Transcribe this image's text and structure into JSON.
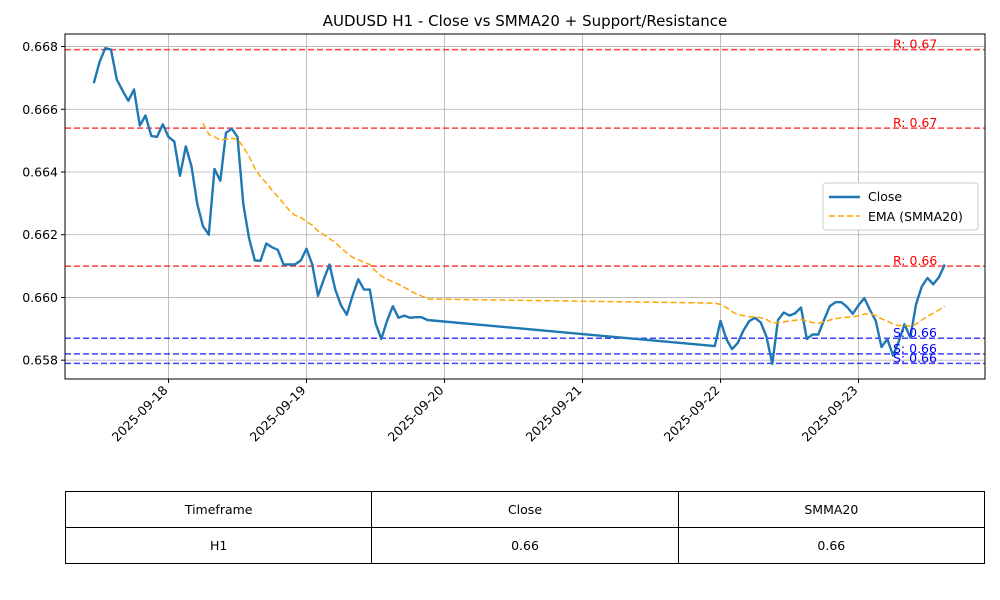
{
  "chart_data": {
    "type": "line",
    "title": "AUDUSD H1 - Close vs SMMA20 + Support/Resistance",
    "xlabel": "",
    "ylabel": "",
    "x_ticks": [
      "2025-09-18",
      "2025-09-19",
      "2025-09-20",
      "2025-09-21",
      "2025-09-22",
      "2025-09-23"
    ],
    "y_ticks": [
      "0.658",
      "0.660",
      "0.662",
      "0.664",
      "0.666",
      "0.668"
    ],
    "xlim": [
      "2025-09-17 06:00",
      "2025-09-23 22:00"
    ],
    "ylim": [
      0.6574,
      0.6684
    ],
    "grid": true,
    "legend_position": "center-right",
    "series": [
      {
        "name": "Close",
        "color": "#1f77b4",
        "style": "solid",
        "points": [
          [
            "2025-09-17 11:00",
            0.66683
          ],
          [
            "2025-09-17 12:00",
            0.6675
          ],
          [
            "2025-09-17 13:00",
            0.66795
          ],
          [
            "2025-09-17 14:00",
            0.6679
          ],
          [
            "2025-09-17 15:00",
            0.66695
          ],
          [
            "2025-09-17 16:00",
            0.6666
          ],
          [
            "2025-09-17 17:00",
            0.66627
          ],
          [
            "2025-09-17 18:00",
            0.66663
          ],
          [
            "2025-09-17 19:00",
            0.66548
          ],
          [
            "2025-09-17 20:00",
            0.6658
          ],
          [
            "2025-09-17 21:00",
            0.66515
          ],
          [
            "2025-09-17 22:00",
            0.66512
          ],
          [
            "2025-09-17 23:00",
            0.66552
          ],
          [
            "2025-09-18 00:00",
            0.66512
          ],
          [
            "2025-09-18 01:00",
            0.66497
          ],
          [
            "2025-09-18 02:00",
            0.66388
          ],
          [
            "2025-09-18 03:00",
            0.66482
          ],
          [
            "2025-09-18 04:00",
            0.66418
          ],
          [
            "2025-09-18 05:00",
            0.66298
          ],
          [
            "2025-09-18 06:00",
            0.66227
          ],
          [
            "2025-09-18 07:00",
            0.662
          ],
          [
            "2025-09-18 08:00",
            0.6641
          ],
          [
            "2025-09-18 09:00",
            0.66372
          ],
          [
            "2025-09-18 10:00",
            0.66525
          ],
          [
            "2025-09-18 11:00",
            0.66538
          ],
          [
            "2025-09-18 12:00",
            0.66512
          ],
          [
            "2025-09-18 13:00",
            0.66298
          ],
          [
            "2025-09-18 14:00",
            0.6619
          ],
          [
            "2025-09-18 15:00",
            0.66118
          ],
          [
            "2025-09-18 16:00",
            0.66117
          ],
          [
            "2025-09-18 17:00",
            0.66172
          ],
          [
            "2025-09-18 18:00",
            0.6616
          ],
          [
            "2025-09-18 19:00",
            0.66152
          ],
          [
            "2025-09-18 20:00",
            0.66105
          ],
          [
            "2025-09-18 21:00",
            0.66105
          ],
          [
            "2025-09-18 22:00",
            0.66105
          ],
          [
            "2025-09-18 23:00",
            0.66118
          ],
          [
            "2025-09-19 00:00",
            0.66155
          ],
          [
            "2025-09-19 01:00",
            0.66105
          ],
          [
            "2025-09-19 02:00",
            0.66005
          ],
          [
            "2025-09-19 03:00",
            0.66058
          ],
          [
            "2025-09-19 04:00",
            0.66105
          ],
          [
            "2025-09-19 05:00",
            0.66025
          ],
          [
            "2025-09-19 06:00",
            0.65975
          ],
          [
            "2025-09-19 07:00",
            0.65945
          ],
          [
            "2025-09-19 08:00",
            0.66005
          ],
          [
            "2025-09-19 09:00",
            0.66058
          ],
          [
            "2025-09-19 10:00",
            0.66025
          ],
          [
            "2025-09-19 11:00",
            0.66025
          ],
          [
            "2025-09-19 12:00",
            0.65918
          ],
          [
            "2025-09-19 13:00",
            0.65868
          ],
          [
            "2025-09-19 14:00",
            0.65925
          ],
          [
            "2025-09-19 15:00",
            0.65972
          ],
          [
            "2025-09-19 16:00",
            0.65935
          ],
          [
            "2025-09-19 17:00",
            0.65942
          ],
          [
            "2025-09-19 18:00",
            0.65935
          ],
          [
            "2025-09-19 19:00",
            0.65937
          ],
          [
            "2025-09-19 20:00",
            0.65937
          ],
          [
            "2025-09-19 21:00",
            0.65928
          ],
          [
            "2025-09-21 23:00",
            0.65845
          ],
          [
            "2025-09-22 00:00",
            0.65925
          ],
          [
            "2025-09-22 01:00",
            0.65868
          ],
          [
            "2025-09-22 02:00",
            0.65835
          ],
          [
            "2025-09-22 03:00",
            0.65855
          ],
          [
            "2025-09-22 04:00",
            0.65895
          ],
          [
            "2025-09-22 05:00",
            0.65925
          ],
          [
            "2025-09-22 06:00",
            0.65935
          ],
          [
            "2025-09-22 07:00",
            0.6592
          ],
          [
            "2025-09-22 08:00",
            0.65875
          ],
          [
            "2025-09-22 09:00",
            0.65788
          ],
          [
            "2025-09-22 10:00",
            0.65928
          ],
          [
            "2025-09-22 11:00",
            0.65952
          ],
          [
            "2025-09-22 12:00",
            0.65942
          ],
          [
            "2025-09-22 13:00",
            0.6595
          ],
          [
            "2025-09-22 14:00",
            0.65968
          ],
          [
            "2025-09-22 15:00",
            0.65868
          ],
          [
            "2025-09-22 16:00",
            0.65882
          ],
          [
            "2025-09-22 17:00",
            0.65882
          ],
          [
            "2025-09-22 18:00",
            0.65928
          ],
          [
            "2025-09-22 19:00",
            0.65972
          ],
          [
            "2025-09-22 20:00",
            0.65985
          ],
          [
            "2025-09-22 21:00",
            0.65985
          ],
          [
            "2025-09-22 22:00",
            0.6597
          ],
          [
            "2025-09-22 23:00",
            0.65948
          ],
          [
            "2025-09-23 00:00",
            0.65975
          ],
          [
            "2025-09-23 01:00",
            0.65998
          ],
          [
            "2025-09-23 02:00",
            0.6596
          ],
          [
            "2025-09-23 03:00",
            0.65925
          ],
          [
            "2025-09-23 04:00",
            0.65842
          ],
          [
            "2025-09-23 05:00",
            0.65868
          ],
          [
            "2025-09-23 06:00",
            0.65815
          ],
          [
            "2025-09-23 07:00",
            0.6586
          ],
          [
            "2025-09-23 08:00",
            0.65915
          ],
          [
            "2025-09-23 09:00",
            0.65872
          ],
          [
            "2025-09-23 10:00",
            0.65978
          ],
          [
            "2025-09-23 11:00",
            0.66035
          ],
          [
            "2025-09-23 12:00",
            0.66062
          ],
          [
            "2025-09-23 13:00",
            0.66042
          ],
          [
            "2025-09-23 14:00",
            0.66065
          ],
          [
            "2025-09-23 15:00",
            0.66105
          ]
        ]
      },
      {
        "name": "EMA (SMMA20)",
        "color": "#ffa500",
        "style": "dashed",
        "points": [
          [
            "2025-09-18 06:00",
            0.66555
          ],
          [
            "2025-09-18 07:00",
            0.6652
          ],
          [
            "2025-09-18 08:00",
            0.66512
          ],
          [
            "2025-09-18 09:00",
            0.66502
          ],
          [
            "2025-09-18 10:00",
            0.66505
          ],
          [
            "2025-09-18 11:00",
            0.66507
          ],
          [
            "2025-09-18 12:00",
            0.66505
          ],
          [
            "2025-09-18 13:00",
            0.6648
          ],
          [
            "2025-09-18 14:00",
            0.6645
          ],
          [
            "2025-09-18 15:00",
            0.66412
          ],
          [
            "2025-09-18 16:00",
            0.66385
          ],
          [
            "2025-09-18 17:00",
            0.66365
          ],
          [
            "2025-09-18 18:00",
            0.66342
          ],
          [
            "2025-09-18 19:00",
            0.66322
          ],
          [
            "2025-09-18 20:00",
            0.663
          ],
          [
            "2025-09-18 21:00",
            0.66278
          ],
          [
            "2025-09-18 22:00",
            0.66262
          ],
          [
            "2025-09-18 23:00",
            0.66255
          ],
          [
            "2025-09-19 00:00",
            0.66242
          ],
          [
            "2025-09-19 01:00",
            0.6623
          ],
          [
            "2025-09-19 02:00",
            0.66212
          ],
          [
            "2025-09-19 03:00",
            0.662
          ],
          [
            "2025-09-19 04:00",
            0.66188
          ],
          [
            "2025-09-19 05:00",
            0.66175
          ],
          [
            "2025-09-19 06:00",
            0.66158
          ],
          [
            "2025-09-19 07:00",
            0.66142
          ],
          [
            "2025-09-19 08:00",
            0.66128
          ],
          [
            "2025-09-19 09:00",
            0.6612
          ],
          [
            "2025-09-19 10:00",
            0.66112
          ],
          [
            "2025-09-19 11:00",
            0.66105
          ],
          [
            "2025-09-19 12:00",
            0.66085
          ],
          [
            "2025-09-19 13:00",
            0.66068
          ],
          [
            "2025-09-19 14:00",
            0.66058
          ],
          [
            "2025-09-19 15:00",
            0.6605
          ],
          [
            "2025-09-19 16:00",
            0.66042
          ],
          [
            "2025-09-19 17:00",
            0.66032
          ],
          [
            "2025-09-19 18:00",
            0.66022
          ],
          [
            "2025-09-19 19:00",
            0.66012
          ],
          [
            "2025-09-19 20:00",
            0.66005
          ],
          [
            "2025-09-19 21:00",
            0.65995
          ],
          [
            "2025-09-21 23:00",
            0.65982
          ],
          [
            "2025-09-22 00:00",
            0.65978
          ],
          [
            "2025-09-22 01:00",
            0.65968
          ],
          [
            "2025-09-22 02:00",
            0.65955
          ],
          [
            "2025-09-22 03:00",
            0.65945
          ],
          [
            "2025-09-22 04:00",
            0.65942
          ],
          [
            "2025-09-22 05:00",
            0.65938
          ],
          [
            "2025-09-22 06:00",
            0.65938
          ],
          [
            "2025-09-22 07:00",
            0.65935
          ],
          [
            "2025-09-22 08:00",
            0.6593
          ],
          [
            "2025-09-22 09:00",
            0.65918
          ],
          [
            "2025-09-22 10:00",
            0.6592
          ],
          [
            "2025-09-22 11:00",
            0.65922
          ],
          [
            "2025-09-22 12:00",
            0.65925
          ],
          [
            "2025-09-22 13:00",
            0.65927
          ],
          [
            "2025-09-22 14:00",
            0.6593
          ],
          [
            "2025-09-22 15:00",
            0.65925
          ],
          [
            "2025-09-22 16:00",
            0.6592
          ],
          [
            "2025-09-22 17:00",
            0.65918
          ],
          [
            "2025-09-22 18:00",
            0.65922
          ],
          [
            "2025-09-22 19:00",
            0.65928
          ],
          [
            "2025-09-22 20:00",
            0.65932
          ],
          [
            "2025-09-22 21:00",
            0.65935
          ],
          [
            "2025-09-22 22:00",
            0.65937
          ],
          [
            "2025-09-22 23:00",
            0.65938
          ],
          [
            "2025-09-23 00:00",
            0.65942
          ],
          [
            "2025-09-23 01:00",
            0.65947
          ],
          [
            "2025-09-23 02:00",
            0.65948
          ],
          [
            "2025-09-23 03:00",
            0.65942
          ],
          [
            "2025-09-23 04:00",
            0.65932
          ],
          [
            "2025-09-23 05:00",
            0.65925
          ],
          [
            "2025-09-23 06:00",
            0.65915
          ],
          [
            "2025-09-23 07:00",
            0.6591
          ],
          [
            "2025-09-23 08:00",
            0.65912
          ],
          [
            "2025-09-23 09:00",
            0.65908
          ],
          [
            "2025-09-23 10:00",
            0.65915
          ],
          [
            "2025-09-23 11:00",
            0.65928
          ],
          [
            "2025-09-23 12:00",
            0.6594
          ],
          [
            "2025-09-23 13:00",
            0.6595
          ],
          [
            "2025-09-23 14:00",
            0.6596
          ],
          [
            "2025-09-23 15:00",
            0.65972
          ]
        ]
      }
    ],
    "levels": [
      {
        "kind": "resistance",
        "value": 0.6679,
        "label": "R: 0.67",
        "color": "#ff0000"
      },
      {
        "kind": "resistance",
        "value": 0.6654,
        "label": "R: 0.67",
        "color": "#ff0000"
      },
      {
        "kind": "resistance",
        "value": 0.661,
        "label": "R: 0.66",
        "color": "#ff0000"
      },
      {
        "kind": "support",
        "value": 0.6587,
        "label": "S: 0.66",
        "color": "#0000ff"
      },
      {
        "kind": "support",
        "value": 0.6582,
        "label": "S: 0.66",
        "color": "#0000ff"
      },
      {
        "kind": "support",
        "value": 0.6579,
        "label": "S: 0.66",
        "color": "#0000ff"
      }
    ]
  },
  "summary_table": {
    "headers": [
      "Timeframe",
      "Close",
      "SMMA20"
    ],
    "row": [
      "H1",
      "0.66",
      "0.66"
    ]
  }
}
